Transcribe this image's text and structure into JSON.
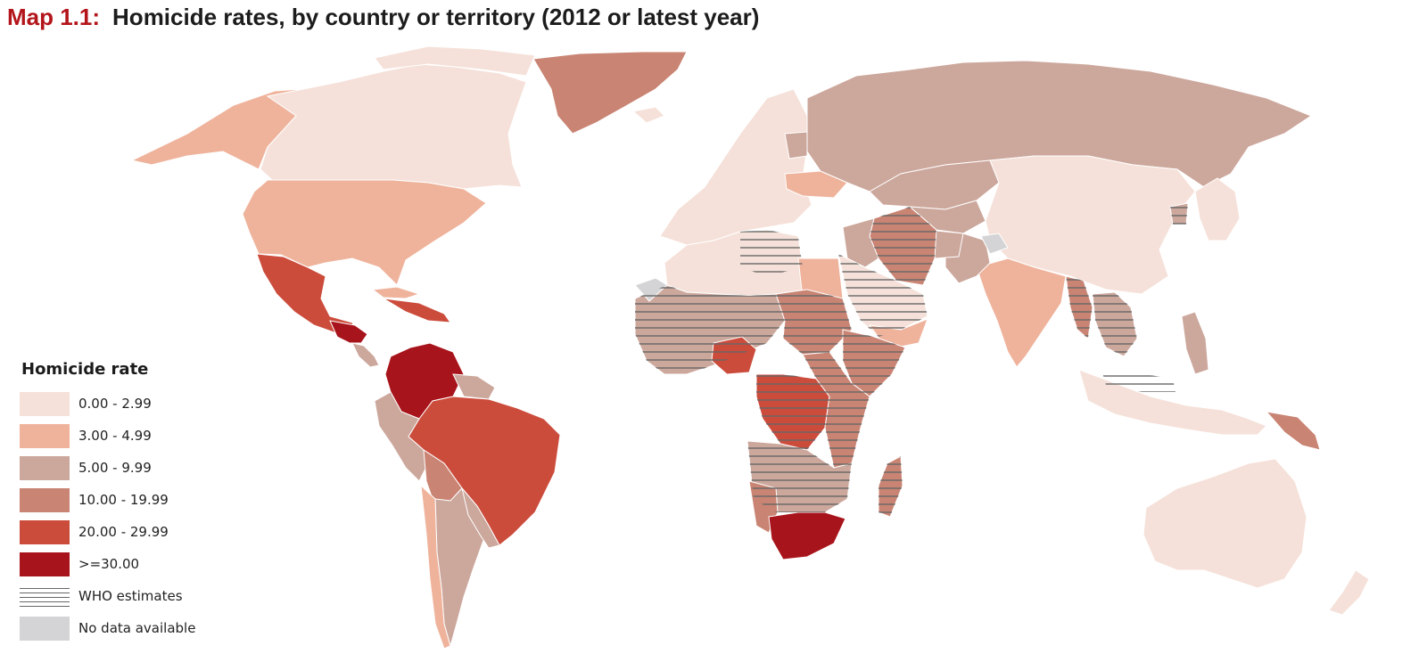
{
  "title": {
    "prefix": "Map 1.1:",
    "text": "Homicide rates, by country or territory (2012 or latest year)"
  },
  "colors": {
    "title_accent": "#b3151b",
    "ocean": "#ffffff",
    "borders": "#ffffff",
    "hatch": "#666666"
  },
  "legend": {
    "title": "Homicide rate",
    "items": [
      {
        "label": "0.00 - 2.99",
        "color": "#f5e1d9"
      },
      {
        "label": "3.00 - 4.99",
        "color": "#efb39c"
      },
      {
        "label": "5.00 - 9.99",
        "color": "#cca79c"
      },
      {
        "label": "10.00 - 19.99",
        "color": "#c98473"
      },
      {
        "label": "20.00 - 29.99",
        "color": "#cc4c3c"
      },
      {
        "label": ">=30.00",
        "color": "#a8141b"
      }
    ],
    "who_label": "WHO estimates",
    "nodata_label": "No data available",
    "nodata_color": "#d4d4d6"
  }
}
